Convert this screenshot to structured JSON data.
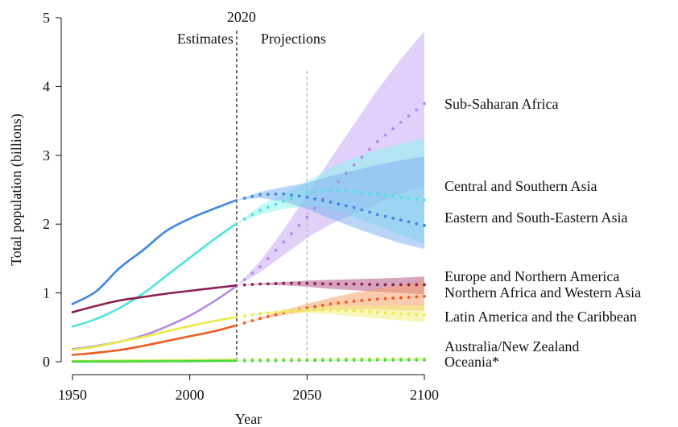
{
  "chart_data": {
    "type": "line",
    "xlabel": "Year",
    "ylabel": "Total population (billions)",
    "xlim": [
      1950,
      2100
    ],
    "ylim": [
      0,
      5
    ],
    "xticks": [
      1950,
      2000,
      2050,
      2100
    ],
    "yticks": [
      0,
      1,
      2,
      3,
      4,
      5
    ],
    "grid": false,
    "legend": "direct labels at right",
    "annotations": {
      "divider_year": 2020,
      "divider_label": "2020",
      "left_label": "Estimates",
      "right_label": "Projections",
      "reference_year": 2050
    },
    "series": [
      {
        "name": "Sub-Saharan Africa",
        "color": "#b48ae8",
        "band_color": "#c9a9f5",
        "estimates": {
          "x": [
            1950,
            1960,
            1970,
            1980,
            1990,
            2000,
            2010,
            2020
          ],
          "y": [
            0.18,
            0.23,
            0.29,
            0.38,
            0.51,
            0.67,
            0.87,
            1.1
          ]
        },
        "projection": {
          "x": [
            2020,
            2030,
            2040,
            2050,
            2060,
            2070,
            2080,
            2090,
            2100
          ],
          "y": [
            1.1,
            1.38,
            1.74,
            2.1,
            2.5,
            2.86,
            3.2,
            3.48,
            3.75
          ]
        },
        "band_low": [
          1.1,
          1.3,
          1.55,
          1.8,
          2.0,
          2.15,
          2.3,
          2.45,
          2.55
        ],
        "band_high": [
          1.1,
          1.46,
          1.92,
          2.42,
          2.95,
          3.45,
          3.95,
          4.4,
          4.8
        ]
      },
      {
        "name": "Central and Southern Asia",
        "color": "#4fe3da",
        "band_color": "#8ff3ef",
        "estimates": {
          "x": [
            1950,
            1960,
            1970,
            1980,
            1990,
            2000,
            2010,
            2020
          ],
          "y": [
            0.51,
            0.62,
            0.78,
            0.99,
            1.25,
            1.51,
            1.77,
            2.01
          ]
        },
        "projection": {
          "x": [
            2020,
            2030,
            2040,
            2050,
            2060,
            2070,
            2080,
            2090,
            2100
          ],
          "y": [
            2.01,
            2.2,
            2.33,
            2.46,
            2.5,
            2.47,
            2.43,
            2.39,
            2.35
          ]
        },
        "band_low": [
          2.01,
          2.14,
          2.22,
          2.26,
          2.22,
          2.1,
          1.98,
          1.84,
          1.72
        ],
        "band_high": [
          2.01,
          2.27,
          2.45,
          2.62,
          2.82,
          2.97,
          3.08,
          3.17,
          3.24
        ]
      },
      {
        "name": "Eastern and South-Eastern Asia",
        "color": "#3f86e6",
        "band_color": "#7fb4f0",
        "estimates": {
          "x": [
            1950,
            1960,
            1970,
            1980,
            1990,
            2000,
            2010,
            2020
          ],
          "y": [
            0.84,
            1.02,
            1.36,
            1.62,
            1.9,
            2.08,
            2.22,
            2.35
          ]
        },
        "projection": {
          "x": [
            2020,
            2030,
            2040,
            2050,
            2060,
            2070,
            2080,
            2090,
            2100
          ],
          "y": [
            2.35,
            2.43,
            2.44,
            2.39,
            2.32,
            2.24,
            2.14,
            2.06,
            1.98
          ]
        },
        "band_low": [
          2.35,
          2.38,
          2.33,
          2.22,
          2.08,
          1.95,
          1.83,
          1.72,
          1.64
        ],
        "band_high": [
          2.35,
          2.47,
          2.54,
          2.6,
          2.7,
          2.78,
          2.86,
          2.93,
          2.98
        ]
      },
      {
        "name": "Europe and Northern America",
        "color": "#8b1e52",
        "band_color": "#b55a87",
        "estimates": {
          "x": [
            1950,
            1960,
            1970,
            1980,
            1990,
            2000,
            2010,
            2020
          ],
          "y": [
            0.72,
            0.81,
            0.89,
            0.94,
            0.99,
            1.03,
            1.07,
            1.11
          ]
        },
        "projection": {
          "x": [
            2020,
            2030,
            2040,
            2050,
            2060,
            2070,
            2080,
            2090,
            2100
          ],
          "y": [
            1.11,
            1.13,
            1.14,
            1.14,
            1.13,
            1.13,
            1.12,
            1.12,
            1.12
          ]
        },
        "band_low": [
          1.11,
          1.12,
          1.11,
          1.09,
          1.06,
          1.04,
          1.02,
          1.0,
          0.98
        ],
        "band_high": [
          1.11,
          1.14,
          1.16,
          1.18,
          1.19,
          1.2,
          1.21,
          1.22,
          1.24
        ]
      },
      {
        "name": "Northern Africa and Western Asia",
        "color": "#f05a1e",
        "band_color": "#f7a06a",
        "estimates": {
          "x": [
            1950,
            1960,
            1970,
            1980,
            1990,
            2000,
            2010,
            2020
          ],
          "y": [
            0.1,
            0.13,
            0.17,
            0.23,
            0.3,
            0.37,
            0.44,
            0.53
          ]
        },
        "projection": {
          "x": [
            2020,
            2030,
            2040,
            2050,
            2060,
            2070,
            2080,
            2090,
            2100
          ],
          "y": [
            0.53,
            0.63,
            0.71,
            0.78,
            0.84,
            0.88,
            0.91,
            0.93,
            0.95
          ]
        },
        "band_low": [
          0.53,
          0.61,
          0.68,
          0.73,
          0.76,
          0.76,
          0.76,
          0.75,
          0.74
        ],
        "band_high": [
          0.53,
          0.64,
          0.75,
          0.84,
          0.93,
          1.0,
          1.06,
          1.12,
          1.17
        ]
      },
      {
        "name": "Latin America and the Caribbean",
        "color": "#ece948",
        "band_color": "#f2ee7e",
        "estimates": {
          "x": [
            1950,
            1960,
            1970,
            1980,
            1990,
            2000,
            2010,
            2020
          ],
          "y": [
            0.17,
            0.22,
            0.29,
            0.36,
            0.44,
            0.52,
            0.59,
            0.65
          ]
        },
        "projection": {
          "x": [
            2020,
            2030,
            2040,
            2050,
            2060,
            2070,
            2080,
            2090,
            2100
          ],
          "y": [
            0.65,
            0.7,
            0.73,
            0.75,
            0.75,
            0.74,
            0.72,
            0.7,
            0.68
          ]
        },
        "band_low": [
          0.65,
          0.69,
          0.7,
          0.71,
          0.69,
          0.66,
          0.63,
          0.6,
          0.57
        ],
        "band_high": [
          0.65,
          0.71,
          0.76,
          0.79,
          0.81,
          0.82,
          0.82,
          0.82,
          0.82
        ]
      },
      {
        "name": "Australia/New Zealand",
        "color": "#c8e84a",
        "band_color": "#d8f08a",
        "estimates": {
          "x": [
            1950,
            1960,
            1970,
            1980,
            1990,
            2000,
            2010,
            2020
          ],
          "y": [
            0.01,
            0.013,
            0.015,
            0.017,
            0.02,
            0.023,
            0.026,
            0.03
          ]
        },
        "projection": {
          "x": [
            2020,
            2030,
            2040,
            2050,
            2060,
            2070,
            2080,
            2090,
            2100
          ],
          "y": [
            0.03,
            0.034,
            0.037,
            0.039,
            0.041,
            0.042,
            0.043,
            0.044,
            0.045
          ]
        },
        "band_low": [
          0.03,
          0.033,
          0.034,
          0.035,
          0.035,
          0.035,
          0.035,
          0.034,
          0.033
        ],
        "band_high": [
          0.03,
          0.035,
          0.039,
          0.043,
          0.046,
          0.049,
          0.052,
          0.055,
          0.058
        ]
      },
      {
        "name": "Oceania*",
        "color": "#49d93a",
        "band_color": "#8ce880",
        "estimates": {
          "x": [
            1950,
            1960,
            1970,
            1980,
            1990,
            2000,
            2010,
            2020
          ],
          "y": [
            0.002,
            0.003,
            0.004,
            0.005,
            0.007,
            0.008,
            0.01,
            0.012
          ]
        },
        "projection": {
          "x": [
            2020,
            2030,
            2040,
            2050,
            2060,
            2070,
            2080,
            2090,
            2100
          ],
          "y": [
            0.012,
            0.015,
            0.017,
            0.019,
            0.021,
            0.022,
            0.023,
            0.024,
            0.025
          ]
        },
        "band_low": [
          0.012,
          0.014,
          0.016,
          0.017,
          0.018,
          0.018,
          0.018,
          0.018,
          0.018
        ],
        "band_high": [
          0.012,
          0.016,
          0.019,
          0.022,
          0.025,
          0.027,
          0.029,
          0.031,
          0.033
        ]
      }
    ]
  }
}
